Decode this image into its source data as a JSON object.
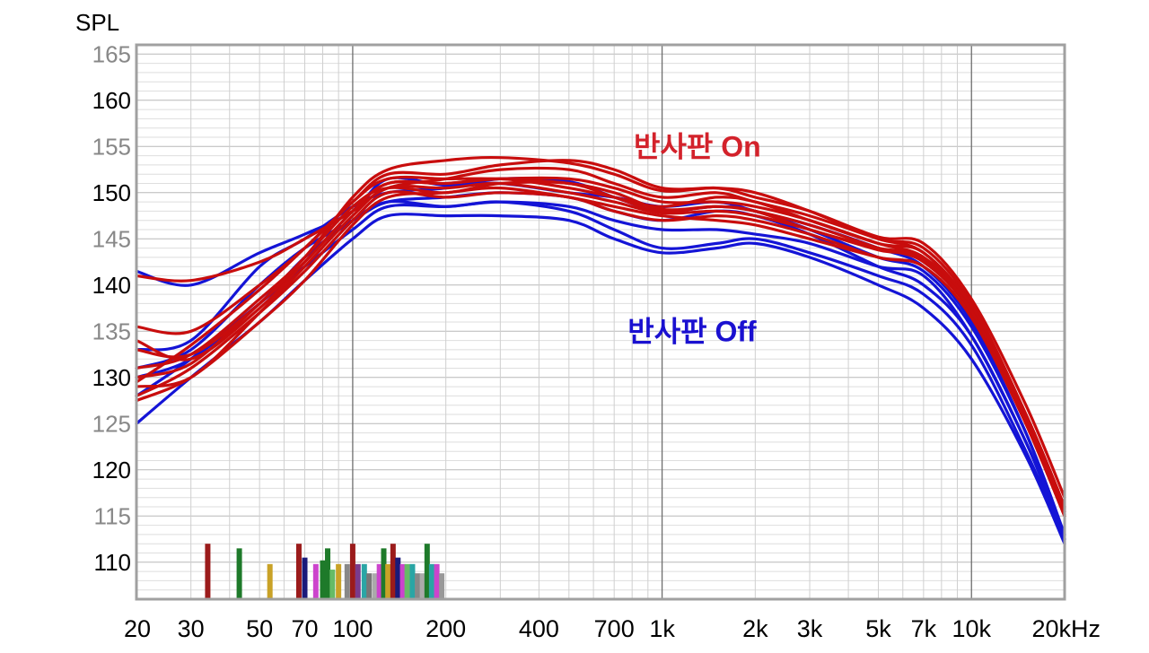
{
  "chart_data": {
    "type": "line",
    "ylabel": "SPL",
    "xscale": "log",
    "xlim": [
      20,
      20000
    ],
    "ylim": [
      106,
      166
    ],
    "y_ticks": [
      {
        "value": 165,
        "label": "165",
        "color": "#888888"
      },
      {
        "value": 160,
        "label": "160",
        "color": "#000000"
      },
      {
        "value": 155,
        "label": "155",
        "color": "#888888"
      },
      {
        "value": 150,
        "label": "150",
        "color": "#000000"
      },
      {
        "value": 145,
        "label": "145",
        "color": "#888888"
      },
      {
        "value": 140,
        "label": "140",
        "color": "#000000"
      },
      {
        "value": 135,
        "label": "135",
        "color": "#888888"
      },
      {
        "value": 130,
        "label": "130",
        "color": "#000000"
      },
      {
        "value": 125,
        "label": "125",
        "color": "#888888"
      },
      {
        "value": 120,
        "label": "120",
        "color": "#000000"
      },
      {
        "value": 115,
        "label": "115",
        "color": "#888888"
      },
      {
        "value": 110,
        "label": "110",
        "color": "#000000"
      }
    ],
    "x_ticks": [
      {
        "value": 20,
        "label": "20"
      },
      {
        "value": 30,
        "label": "30"
      },
      {
        "value": 50,
        "label": "50"
      },
      {
        "value": 70,
        "label": "70"
      },
      {
        "value": 100,
        "label": "100"
      },
      {
        "value": 200,
        "label": "200"
      },
      {
        "value": 400,
        "label": "400"
      },
      {
        "value": 700,
        "label": "700"
      },
      {
        "value": 1000,
        "label": "1k"
      },
      {
        "value": 2000,
        "label": "2k"
      },
      {
        "value": 3000,
        "label": "3k"
      },
      {
        "value": 5000,
        "label": "5k"
      },
      {
        "value": 7000,
        "label": "7k"
      },
      {
        "value": 10000,
        "label": "10k"
      },
      {
        "value": 20000,
        "label": "20kHz"
      }
    ],
    "x": [
      20,
      30,
      50,
      70,
      100,
      130,
      200,
      300,
      500,
      700,
      1000,
      1500,
      2000,
      3000,
      5000,
      7000,
      10000,
      15000,
      20000
    ],
    "annotations": [
      {
        "text": "반사판 On",
        "color": "#d3222b",
        "x": 1300,
        "y": 155
      },
      {
        "text": "반사판 Off",
        "color": "#1a10d0",
        "x": 1250,
        "y": 135
      }
    ],
    "series": [
      {
        "group": "off",
        "color": "#1414d6",
        "values": [
          141.5,
          140,
          143.5,
          145.5,
          148,
          151.5,
          150.8,
          151,
          150,
          149.5,
          148.5,
          149,
          148,
          146.5,
          144,
          142,
          136,
          124,
          112.5
        ]
      },
      {
        "group": "off",
        "color": "#1414d6",
        "values": [
          133,
          134,
          142,
          145,
          148.5,
          150,
          150.5,
          151.5,
          151.2,
          149.5,
          148,
          148.5,
          148,
          146,
          143,
          141.5,
          135.5,
          124,
          113
        ]
      },
      {
        "group": "off",
        "color": "#1414d6",
        "values": [
          131,
          133,
          140,
          144,
          147,
          149,
          149.5,
          150,
          149.5,
          148,
          147,
          148,
          147.5,
          145.5,
          142,
          140,
          134.5,
          123,
          112.5
        ]
      },
      {
        "group": "off",
        "color": "#1414d6",
        "values": [
          128,
          132,
          138,
          142,
          146,
          148.5,
          148.5,
          149,
          148.5,
          147,
          146,
          146,
          145.5,
          144.5,
          142,
          141,
          134.5,
          123,
          113
        ]
      },
      {
        "group": "off",
        "color": "#1414d6",
        "values": [
          125,
          130,
          136,
          140.5,
          145,
          147.5,
          147.5,
          147.5,
          147,
          145,
          143.5,
          144,
          144.5,
          143,
          140,
          137.5,
          132,
          121.5,
          112
        ]
      },
      {
        "group": "off",
        "color": "#1414d6",
        "values": [
          130,
          132,
          138,
          143,
          147,
          149,
          148.5,
          149,
          148,
          146,
          144,
          144.5,
          145,
          143.5,
          141,
          139,
          133.5,
          122,
          112.5
        ]
      },
      {
        "group": "on",
        "color": "#c80d0d",
        "values": [
          141,
          140.5,
          142.5,
          145,
          148,
          150.5,
          151.5,
          152.5,
          152.5,
          151,
          149.5,
          150,
          149,
          147.5,
          145,
          143.5,
          137.5,
          125,
          115
        ]
      },
      {
        "group": "on",
        "color": "#c80d0d",
        "values": [
          135.5,
          135,
          140,
          144,
          149,
          152,
          152,
          153,
          153.5,
          152.5,
          150.5,
          150.5,
          150,
          148,
          145,
          144,
          138,
          126,
          116
        ]
      },
      {
        "group": "on",
        "color": "#c80d0d",
        "values": [
          131,
          132.5,
          138.5,
          143,
          149.5,
          152.5,
          153.5,
          153.8,
          153.2,
          152,
          150.2,
          150.5,
          149.5,
          148,
          145.2,
          144.5,
          138.5,
          127,
          117
        ]
      },
      {
        "group": "on",
        "color": "#c80d0d",
        "values": [
          130,
          131.5,
          138,
          142.5,
          148,
          151,
          151,
          151.5,
          150.5,
          149.5,
          148.5,
          149.5,
          149,
          147,
          144.5,
          143.5,
          137.5,
          126,
          116
        ]
      },
      {
        "group": "on",
        "color": "#c80d0d",
        "values": [
          129.5,
          133.5,
          139.5,
          144,
          149,
          151.5,
          151.5,
          151.5,
          151,
          150,
          148.2,
          148.5,
          148,
          146.5,
          144,
          142.5,
          137,
          125.5,
          115.5
        ]
      },
      {
        "group": "on",
        "color": "#c80d0d",
        "values": [
          128,
          131,
          137,
          141.5,
          147,
          150,
          149.5,
          150,
          149.5,
          148,
          147,
          147.5,
          147,
          145.5,
          143,
          142,
          136.5,
          125,
          115
        ]
      },
      {
        "group": "on",
        "color": "#c80d0d",
        "values": [
          127.5,
          130,
          136,
          140.5,
          146.5,
          149.5,
          150,
          150.5,
          149.5,
          148.5,
          147.5,
          147,
          146.5,
          145,
          143,
          142,
          136.5,
          125,
          115
        ]
      },
      {
        "group": "on",
        "color": "#c80d0d",
        "values": [
          133,
          132.5,
          138,
          143,
          148.5,
          150.5,
          150,
          151,
          151,
          149.5,
          148,
          148.5,
          148,
          146,
          144,
          143,
          137,
          125.5,
          115.5
        ]
      },
      {
        "group": "on",
        "color": "#c80d0d",
        "values": [
          129,
          130,
          137,
          142,
          147.5,
          150.5,
          150.5,
          151,
          150,
          149,
          147.8,
          148,
          147.5,
          146,
          143.8,
          142.8,
          137.2,
          125.5,
          115.2
        ]
      },
      {
        "group": "on",
        "color": "#c80d0d",
        "values": [
          134,
          132,
          137.5,
          142.5,
          148,
          151,
          151,
          151.5,
          151.5,
          150.5,
          149,
          149,
          148.5,
          147,
          144.5,
          143,
          137.8,
          126,
          115.8
        ]
      }
    ],
    "markers": [
      {
        "freq": 34,
        "level": 112,
        "color": "#9b1b1b"
      },
      {
        "freq": 43,
        "level": 111.5,
        "color": "#1e7a2a"
      },
      {
        "freq": 54,
        "level": 109.8,
        "color": "#c9a227"
      },
      {
        "freq": 67,
        "level": 112,
        "color": "#9b1b1b"
      },
      {
        "freq": 70,
        "level": 110.5,
        "color": "#1a1a7a"
      },
      {
        "freq": 76,
        "level": 109.8,
        "color": "#cc44cc"
      },
      {
        "freq": 80,
        "level": 110.2,
        "color": "#1e7a2a"
      },
      {
        "freq": 83,
        "level": 111.5,
        "color": "#1e7a2a"
      },
      {
        "freq": 86,
        "level": 109.2,
        "color": "#66bb66"
      },
      {
        "freq": 90,
        "level": 109.8,
        "color": "#c9a227"
      },
      {
        "freq": 96,
        "level": 109.8,
        "color": "#888888"
      },
      {
        "freq": 100,
        "level": 112,
        "color": "#9b1b1b"
      },
      {
        "freq": 104,
        "level": 109.8,
        "color": "#7a3b8c"
      },
      {
        "freq": 109,
        "level": 109.8,
        "color": "#2aa5a5"
      },
      {
        "freq": 113,
        "level": 108.8,
        "color": "#777777"
      },
      {
        "freq": 118,
        "level": 108.8,
        "color": "#aaaaaa"
      },
      {
        "freq": 122,
        "level": 109.8,
        "color": "#cc44cc"
      },
      {
        "freq": 126,
        "level": 111.5,
        "color": "#1e7a2a"
      },
      {
        "freq": 130,
        "level": 109.8,
        "color": "#c9a227"
      },
      {
        "freq": 135,
        "level": 112,
        "color": "#9b1b1b"
      },
      {
        "freq": 140,
        "level": 110.5,
        "color": "#1a1a7a"
      },
      {
        "freq": 145,
        "level": 109.8,
        "color": "#cc44cc"
      },
      {
        "freq": 150,
        "level": 109.8,
        "color": "#66bb66"
      },
      {
        "freq": 156,
        "level": 109.8,
        "color": "#2aa5a5"
      },
      {
        "freq": 162,
        "level": 108.8,
        "color": "#888888"
      },
      {
        "freq": 168,
        "level": 108.8,
        "color": "#aaaaaa"
      },
      {
        "freq": 174,
        "level": 112,
        "color": "#1e7a2a"
      },
      {
        "freq": 180,
        "level": 109.8,
        "color": "#2aa5a5"
      },
      {
        "freq": 187,
        "level": 109.8,
        "color": "#cc44cc"
      },
      {
        "freq": 194,
        "level": 108.8,
        "color": "#999999"
      }
    ]
  }
}
